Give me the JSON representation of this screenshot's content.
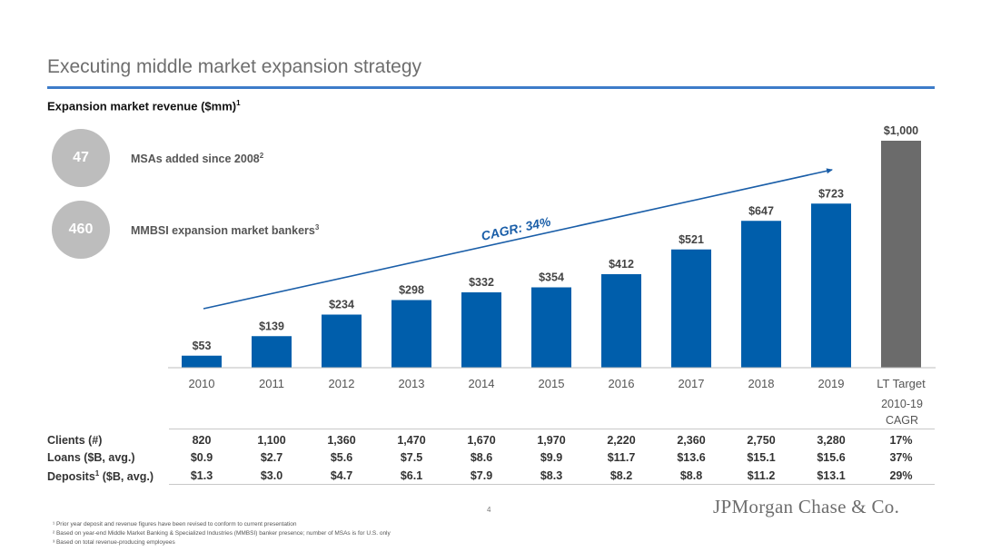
{
  "header": {
    "title": "Executing middle market expansion strategy",
    "subtitle": "Expansion market revenue ($mm)",
    "subtitle_sup": "1"
  },
  "kpis": [
    {
      "value": "47",
      "label": "MSAs added since 2008",
      "sup": "2"
    },
    {
      "value": "460",
      "label": "MMBSI expansion market bankers",
      "sup": "3"
    }
  ],
  "chart_data": {
    "type": "bar",
    "categories": [
      "2010",
      "2011",
      "2012",
      "2013",
      "2014",
      "2015",
      "2016",
      "2017",
      "2018",
      "2019",
      "LT Target"
    ],
    "values": [
      53,
      139,
      234,
      298,
      332,
      354,
      412,
      521,
      647,
      723,
      1000
    ],
    "labels": [
      "$53",
      "$139",
      "$234",
      "$298",
      "$332",
      "$354",
      "$412",
      "$521",
      "$647",
      "$723",
      "$1,000"
    ],
    "ylim": [
      0,
      1000
    ],
    "colors": {
      "actual": "#005eab",
      "target": "#6b6b6b"
    },
    "annotation": "CAGR: 34%",
    "grid": false
  },
  "table": {
    "cagr_header": [
      "2010-19",
      "CAGR"
    ],
    "rows": [
      {
        "label": "Clients (#)",
        "sup": "",
        "label_rest": "",
        "values": [
          "820",
          "1,100",
          "1,360",
          "1,470",
          "1,670",
          "1,970",
          "2,220",
          "2,360",
          "2,750",
          "3,280"
        ],
        "cagr": "17%"
      },
      {
        "label": "Loans ($B, avg.)",
        "sup": "",
        "label_rest": "",
        "values": [
          "$0.9",
          "$2.7",
          "$5.6",
          "$7.5",
          "$8.6",
          "$9.9",
          "$11.7",
          "$13.6",
          "$15.1",
          "$15.6"
        ],
        "cagr": "37%"
      },
      {
        "label": "Deposits",
        "sup": "1",
        "label_rest": " ($B, avg.)",
        "values": [
          "$1.3",
          "$3.0",
          "$4.7",
          "$6.1",
          "$7.9",
          "$8.3",
          "$8.2",
          "$8.8",
          "$11.2",
          "$13.1"
        ],
        "cagr": "29%"
      }
    ]
  },
  "footer": {
    "page": "4",
    "logo": "JPMorgan Chase & Co.",
    "footnotes": [
      "¹ Prior year deposit and revenue figures have been revised to conform to current presentation",
      "² Based on year-end Middle Market Banking & Specialized Industries (MMBSI) banker presence; number of MSAs is for U.S. only",
      "³ Based on total revenue-producing employees"
    ]
  }
}
